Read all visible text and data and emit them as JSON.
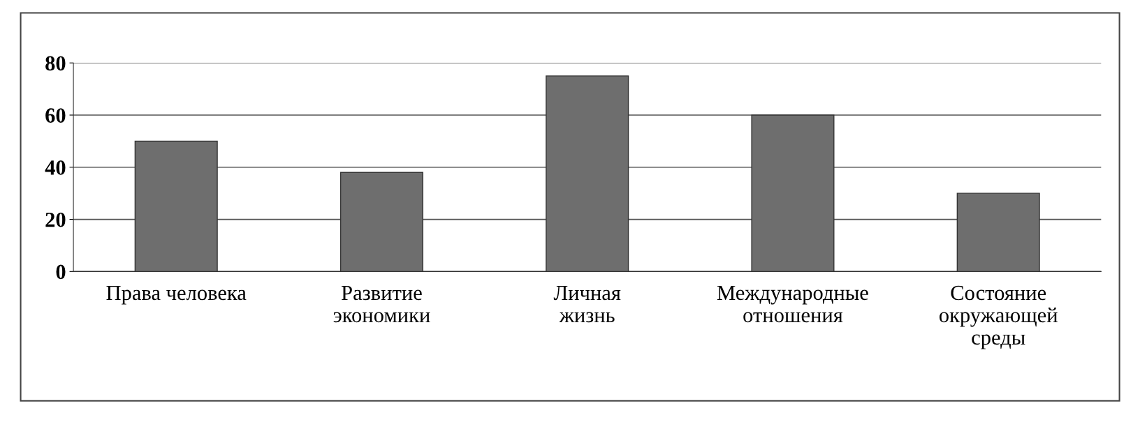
{
  "chart_data": {
    "type": "bar",
    "categories": [
      "Права человека",
      "Развитие\nэкономики",
      "Личная\nжизнь",
      "Международные\nотношения",
      "Состояние\nокружающей\nсреды"
    ],
    "values": [
      50,
      38,
      75,
      60,
      30
    ],
    "color": "#6e6e6e",
    "ylim": [
      0,
      80
    ],
    "yticks": [
      0,
      20,
      40,
      60,
      80
    ],
    "grid": "y"
  }
}
